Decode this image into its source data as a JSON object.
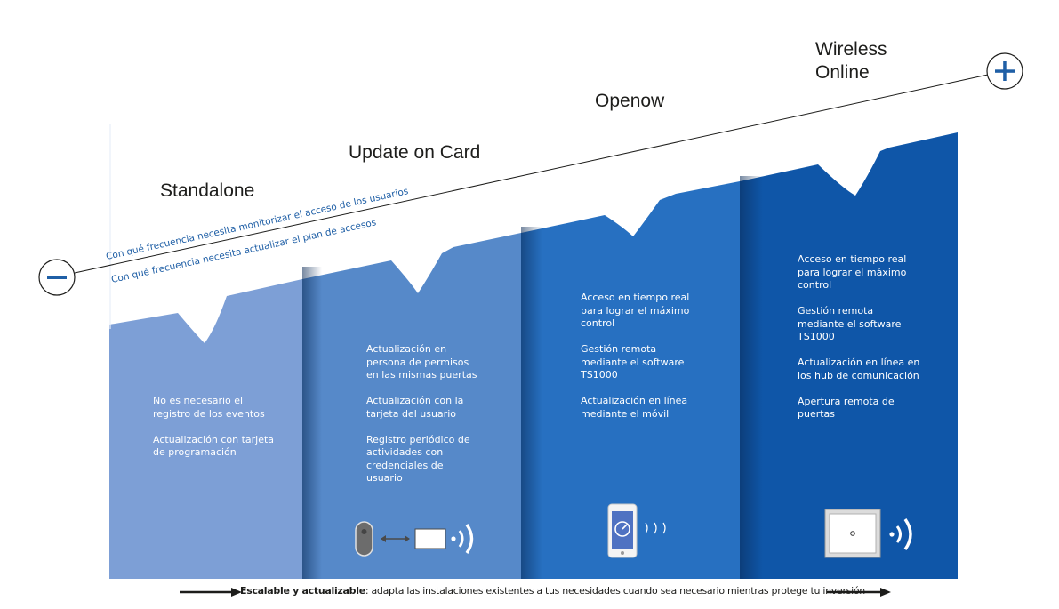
{
  "stages": [
    {
      "name": "Standalone",
      "features": [
        "No es necesario el registro de los eventos",
        "Actualización con tarjeta de programación"
      ]
    },
    {
      "name": "Update on Card",
      "features": [
        "Actualización en persona de permisos en las mismas puertas",
        "Actualización con la tarjeta del usuario",
        "Registro periódico de actividades con credenciales de usuario"
      ]
    },
    {
      "name": "Openow",
      "features": [
        "Acceso en tiempo real para lograr el máximo control",
        "Gestión remota mediante el software TS1000",
        "Actualización en línea mediante el móvil"
      ]
    },
    {
      "name": "Wireless Online",
      "features": [
        "Acceso en tiempo real para lograr el máximo control",
        "Gestión remota mediante el software TS1000",
        "Actualización en línea en los hub de comunicación",
        "Apertura remota de puertas"
      ]
    }
  ],
  "axis": {
    "line1": "Con qué frecuencia necesita monitorizar el acceso de los usuarios",
    "line2": "Con qué frecuencia necesita actualizar el plan de accesos",
    "minus_icon": "minus-circle-icon",
    "plus_icon": "plus-circle-icon"
  },
  "footer": {
    "bold": "Escalable y actualizable",
    "text": ": adapta las instalaciones existentes a tus necesidades cuando sea necesario mientras protege tu inversión"
  },
  "icons": [
    "key-fob-icon",
    "double-arrow-icon",
    "card-icon",
    "wireless-signal-icon",
    "smartphone-icon",
    "wireless-signal-icon",
    "wall-reader-icon",
    "wireless-signal-icon"
  ],
  "colors": {
    "col1": "#7d9fd6",
    "col2": "#5689c9",
    "col3": "#2770c1",
    "col4": "#0f56a8",
    "accent": "#1f5fa6",
    "text": "#1d1d1b"
  }
}
